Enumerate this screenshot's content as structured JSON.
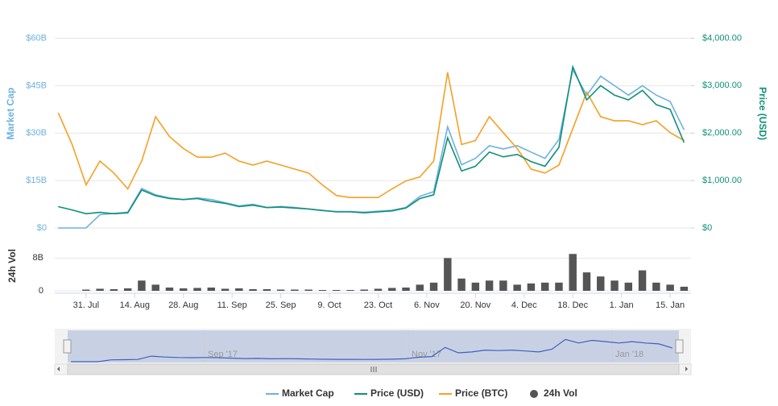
{
  "chart_data": {
    "type": "line",
    "x": [
      "2017-07-23",
      "2017-07-27",
      "2017-07-31",
      "2017-08-04",
      "2017-08-08",
      "2017-08-12",
      "2017-08-16",
      "2017-08-20",
      "2017-08-24",
      "2017-08-28",
      "2017-09-01",
      "2017-09-05",
      "2017-09-09",
      "2017-09-13",
      "2017-09-17",
      "2017-09-21",
      "2017-09-25",
      "2017-09-29",
      "2017-10-03",
      "2017-10-07",
      "2017-10-11",
      "2017-10-15",
      "2017-10-19",
      "2017-10-23",
      "2017-10-27",
      "2017-10-31",
      "2017-11-04",
      "2017-11-08",
      "2017-11-12",
      "2017-11-16",
      "2017-11-20",
      "2017-11-24",
      "2017-11-28",
      "2017-12-02",
      "2017-12-06",
      "2017-12-10",
      "2017-12-14",
      "2017-12-18",
      "2017-12-22",
      "2017-12-26",
      "2017-12-30",
      "2018-01-03",
      "2018-01-07",
      "2018-01-11",
      "2018-01-15",
      "2018-01-19"
    ],
    "xlim": [
      "2017-07-22",
      "2018-01-21"
    ],
    "xticks": [
      {
        "value": "2017-07-31",
        "label": "31. Jul"
      },
      {
        "value": "2017-08-14",
        "label": "14. Aug"
      },
      {
        "value": "2017-08-28",
        "label": "28. Aug"
      },
      {
        "value": "2017-09-11",
        "label": "11. Sep"
      },
      {
        "value": "2017-09-25",
        "label": "25. Sep"
      },
      {
        "value": "2017-10-09",
        "label": "9. Oct"
      },
      {
        "value": "2017-10-23",
        "label": "23. Oct"
      },
      {
        "value": "2017-11-06",
        "label": "6. Nov"
      },
      {
        "value": "2017-11-20",
        "label": "20. Nov"
      },
      {
        "value": "2017-12-04",
        "label": "4. Dec"
      },
      {
        "value": "2017-12-18",
        "label": "18. Dec"
      },
      {
        "value": "2018-01-01",
        "label": "1. Jan"
      },
      {
        "value": "2018-01-15",
        "label": "15. Jan"
      }
    ],
    "ylabel": "Market Cap",
    "ylim": [
      0,
      67000000000.0
    ],
    "yticks": [
      {
        "value": 0,
        "label": "$0"
      },
      {
        "value": 15000000000.0,
        "label": "$15B"
      },
      {
        "value": 30000000000.0,
        "label": "$30B"
      },
      {
        "value": 45000000000.0,
        "label": "$45B"
      },
      {
        "value": 60000000000.0,
        "label": "$60B"
      }
    ],
    "y2label": "Price (USD)",
    "y2lim": [
      0,
      4466
    ],
    "y2ticks": [
      {
        "value": 0,
        "label": "$0"
      },
      {
        "value": 1000,
        "label": "$1,000.00"
      },
      {
        "value": 2000,
        "label": "$2,000.00"
      },
      {
        "value": 3000,
        "label": "$3,000.00"
      },
      {
        "value": 4000,
        "label": "$4,000.00"
      }
    ],
    "y3lim": [
      0,
      0.32
    ],
    "vol_label": "24h Vol",
    "vol_ylim": [
      0,
      12000000000.0
    ],
    "vol_yticks": [
      0,
      {
        "value": 8000000000.0,
        "label": "8B"
      }
    ],
    "grid": true,
    "navigator_xticks": [
      {
        "value": "2017-09-01",
        "label": "Sep '17"
      },
      {
        "value": "2017-11-01",
        "label": "Nov '17"
      },
      {
        "value": "2018-01-01",
        "label": "Jan '18"
      }
    ],
    "series": [
      {
        "name": "Market Cap",
        "color": "#6eb1e1",
        "axis": "y",
        "type": "line",
        "values": [
          0,
          0,
          0,
          4200000000.0,
          4600000000.0,
          5000000000.0,
          12500000000.0,
          10500000000.0,
          9500000000.0,
          9000000000.0,
          9500000000.0,
          9000000000.0,
          8000000000.0,
          7000000000.0,
          7500000000.0,
          6500000000.0,
          6800000000.0,
          6500000000.0,
          6000000000.0,
          5500000000.0,
          5200000000.0,
          5200000000.0,
          5000000000.0,
          5300000000.0,
          5600000000.0,
          6500000000.0,
          10000000000.0,
          11500000000.0,
          32000000000.0,
          20000000000.0,
          22000000000.0,
          26000000000.0,
          25000000000.0,
          26000000000.0,
          24000000000.0,
          22000000000.0,
          28000000000.0,
          50000000000.0,
          42000000000.0,
          48000000000.0,
          45000000000.0,
          42000000000.0,
          45000000000.0,
          42000000000.0,
          40000000000.0,
          31000000000.0
        ]
      },
      {
        "name": "Price (USD)",
        "color": "#0f9078",
        "axis": "y2",
        "type": "line",
        "values": [
          450,
          380,
          300,
          330,
          300,
          320,
          800,
          680,
          620,
          600,
          620,
          560,
          520,
          450,
          480,
          430,
          440,
          420,
          400,
          370,
          340,
          340,
          320,
          340,
          360,
          420,
          620,
          700,
          1900,
          1200,
          1300,
          1600,
          1500,
          1550,
          1400,
          1300,
          1700,
          3400,
          2700,
          3000,
          2800,
          2700,
          2900,
          2600,
          2500,
          1800
        ]
      },
      {
        "name": "Price (BTC)",
        "color": "#f4a024",
        "axis": "y3",
        "type": "line",
        "values": [
          0.174,
          0.126,
          0.065,
          0.101,
          0.083,
          0.059,
          0.101,
          0.168,
          0.138,
          0.12,
          0.107,
          0.107,
          0.113,
          0.101,
          0.095,
          0.101,
          0.095,
          0.089,
          0.083,
          0.065,
          0.049,
          0.046,
          0.046,
          0.046,
          0.059,
          0.071,
          0.077,
          0.101,
          0.235,
          0.126,
          0.132,
          0.168,
          0.144,
          0.12,
          0.089,
          0.083,
          0.095,
          0.15,
          0.205,
          0.168,
          0.162,
          0.162,
          0.156,
          0.162,
          0.144,
          0.132
        ]
      },
      {
        "name": "24h Vol",
        "color": "#555555",
        "axis": "vol",
        "type": "column",
        "values": [
          0,
          0,
          300000000.0,
          500000000.0,
          400000000.0,
          600000000.0,
          2500000000.0,
          1500000000.0,
          800000000.0,
          600000000.0,
          700000000.0,
          800000000.0,
          500000000.0,
          600000000.0,
          400000000.0,
          400000000.0,
          300000000.0,
          300000000.0,
          300000000.0,
          200000000.0,
          200000000.0,
          200000000.0,
          300000000.0,
          500000000.0,
          700000000.0,
          800000000.0,
          1500000000.0,
          2000000000.0,
          8000000000.0,
          3000000000.0,
          2000000000.0,
          2500000000.0,
          2500000000.0,
          1500000000.0,
          1800000000.0,
          2000000000.0,
          2000000000.0,
          9000000000.0,
          4500000000.0,
          3500000000.0,
          2500000000.0,
          2000000000.0,
          5000000000.0,
          2000000000.0,
          1500000000.0,
          1000000000.0
        ]
      }
    ]
  }
}
